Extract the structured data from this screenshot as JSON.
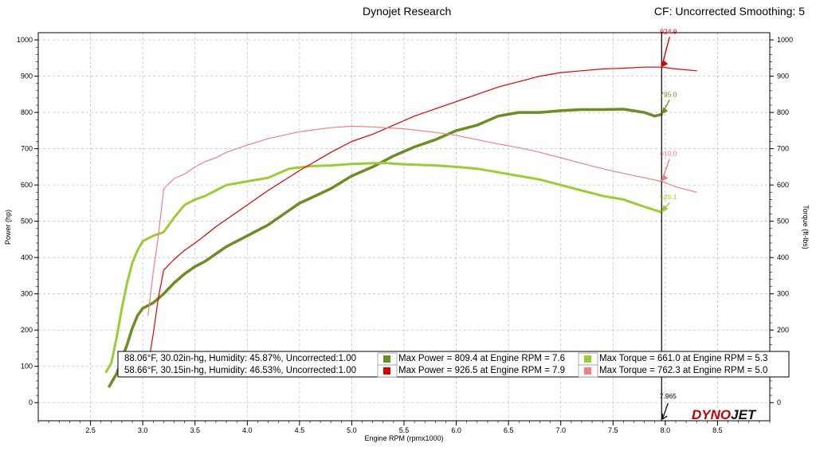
{
  "header": {
    "title": "Dynojet Research",
    "cf_info": "CF: Uncorrected Smoothing: 5"
  },
  "logo": {
    "part1": "DYNO",
    "part2": "JET"
  },
  "legend": [
    {
      "conditions": "88.06°F, 30.02in-hg, Humidity: 45.87%, Uncorrected:1.00",
      "power_text": "Max Power = 809.4 at Engine RPM = 7.6",
      "power_color": "#6b8e23",
      "torque_text": "Max Torque = 661.0 at Engine RPM = 5.3",
      "torque_color": "#9acd32"
    },
    {
      "conditions": "58.66°F, 30.15in-hg, Humidity: 46.53%, Uncorrected:1.00",
      "power_text": "Max Power = 926.5 at Engine RPM = 7.9",
      "power_color": "#e00000",
      "torque_text": "Max Torque = 762.3 at Engine RPM = 5.0",
      "torque_color": "#f08080"
    }
  ],
  "cursor": {
    "rpm_label": "7.965",
    "rpm": 7.965
  },
  "chart_data": {
    "type": "line",
    "xlabel": "Engine RPM (rpmx1000)",
    "ylabel": "Power (hp)",
    "ylabel_right": "Torque (ft-lbs)",
    "xlim": [
      2.0,
      9.0
    ],
    "ylim": [
      -50,
      1020
    ],
    "y2lim": [
      -50,
      1020
    ],
    "x_ticks": [
      "2.5",
      "3.0",
      "3.5",
      "4.0",
      "4.5",
      "5.0",
      "5.5",
      "6.0",
      "6.5",
      "7.0",
      "7.5",
      "8.0",
      "8.5"
    ],
    "y_ticks": [
      "0",
      "100",
      "200",
      "300",
      "400",
      "500",
      "600",
      "700",
      "800",
      "900",
      "1000"
    ],
    "grid": true,
    "series": [
      {
        "name": "Max Power = 809.4 at Engine RPM = 7.6",
        "axis": "left",
        "color": "#6b8e23",
        "width": 3.5,
        "x": [
          2.68,
          2.75,
          2.8,
          2.85,
          2.9,
          2.95,
          3.0,
          3.1,
          3.2,
          3.3,
          3.4,
          3.5,
          3.6,
          3.7,
          3.8,
          3.9,
          4.0,
          4.2,
          4.4,
          4.5,
          4.6,
          4.8,
          5.0,
          5.2,
          5.4,
          5.6,
          5.8,
          6.0,
          6.2,
          6.4,
          6.6,
          6.8,
          7.0,
          7.2,
          7.4,
          7.6,
          7.8,
          7.9,
          7.965
        ],
        "y": [
          45,
          80,
          120,
          160,
          205,
          240,
          260,
          275,
          300,
          330,
          355,
          375,
          390,
          410,
          430,
          445,
          460,
          490,
          530,
          550,
          563,
          590,
          625,
          650,
          680,
          705,
          725,
          750,
          765,
          790,
          800,
          800,
          805,
          808,
          808,
          809,
          800,
          790,
          795
        ]
      },
      {
        "name": "Max Torque = 661.0 at Engine RPM = 5.3",
        "axis": "right",
        "color": "#9acd32",
        "width": 3,
        "x": [
          2.65,
          2.7,
          2.75,
          2.8,
          2.85,
          2.9,
          2.95,
          3.0,
          3.1,
          3.2,
          3.3,
          3.4,
          3.5,
          3.6,
          3.7,
          3.8,
          4.0,
          4.2,
          4.4,
          4.6,
          4.8,
          5.0,
          5.3,
          5.5,
          5.8,
          6.0,
          6.2,
          6.4,
          6.6,
          6.8,
          7.0,
          7.2,
          7.4,
          7.6,
          7.8,
          7.965
        ],
        "y": [
          85,
          110,
          180,
          260,
          330,
          385,
          420,
          445,
          460,
          470,
          510,
          545,
          560,
          570,
          585,
          600,
          610,
          620,
          645,
          652,
          654,
          658,
          661,
          657,
          654,
          650,
          645,
          635,
          625,
          615,
          600,
          585,
          570,
          560,
          540,
          525
        ]
      },
      {
        "name": "Max Power = 926.5 at Engine RPM = 7.9",
        "axis": "left",
        "color": "#e00000",
        "width": 1.2,
        "x": [
          3.05,
          3.1,
          3.15,
          3.2,
          3.3,
          3.4,
          3.5,
          3.6,
          3.7,
          3.8,
          4.0,
          4.2,
          4.5,
          4.8,
          5.0,
          5.2,
          5.4,
          5.6,
          5.8,
          6.0,
          6.2,
          6.4,
          6.6,
          6.8,
          7.0,
          7.2,
          7.4,
          7.6,
          7.8,
          7.965,
          8.1,
          8.3
        ],
        "y": [
          100,
          190,
          290,
          365,
          395,
          420,
          440,
          462,
          485,
          505,
          545,
          585,
          640,
          690,
          720,
          740,
          765,
          790,
          810,
          830,
          850,
          870,
          885,
          900,
          910,
          915,
          920,
          922,
          925,
          925,
          920,
          915
        ]
      },
      {
        "name": "Max Torque = 762.3 at Engine RPM = 5.0",
        "axis": "right",
        "color": "#f08080",
        "width": 1.2,
        "x": [
          3.05,
          3.1,
          3.15,
          3.2,
          3.3,
          3.4,
          3.5,
          3.6,
          3.7,
          3.8,
          4.0,
          4.2,
          4.5,
          4.8,
          5.0,
          5.2,
          5.5,
          5.8,
          6.0,
          6.2,
          6.4,
          6.6,
          6.8,
          7.0,
          7.2,
          7.4,
          7.6,
          7.8,
          7.965,
          8.1,
          8.3
        ],
        "y": [
          240,
          360,
          460,
          590,
          618,
          630,
          650,
          665,
          675,
          690,
          710,
          728,
          747,
          758,
          762,
          760,
          755,
          745,
          737,
          725,
          713,
          703,
          690,
          675,
          660,
          645,
          632,
          620,
          610,
          595,
          580
        ]
      }
    ],
    "annotations": [
      {
        "text": "924.9",
        "x": 7.965,
        "y": 924.9,
        "color": "#e00000"
      },
      {
        "text": "795.0",
        "x": 7.965,
        "y": 795.0,
        "color": "#6b8e23"
      },
      {
        "text": "610.0",
        "x": 7.965,
        "y": 610.0,
        "color": "#f08080"
      },
      {
        "text": "525.1",
        "x": 7.965,
        "y": 525.1,
        "color": "#9acd32"
      }
    ]
  }
}
